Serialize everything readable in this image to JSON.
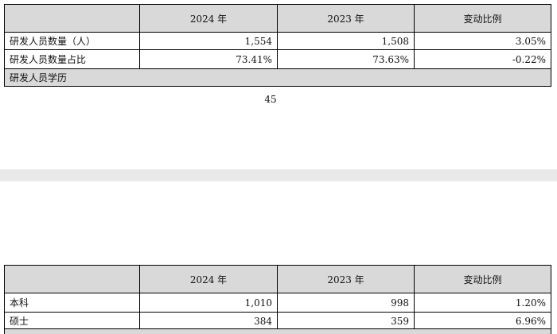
{
  "page1": {
    "table": {
      "header": [
        "2024 年",
        "2023 年",
        "变动比例"
      ],
      "rows": [
        [
          "研发人员数量（人）",
          "1,554",
          "1,508",
          "3.05%"
        ],
        [
          "研发人员数量占比",
          "73.41%",
          "73.63%",
          "-0.22%"
        ]
      ],
      "section": "研发人员学历"
    },
    "page_number": "45"
  },
  "page2": {
    "table": {
      "header": [
        "2024 年",
        "2023 年",
        "变动比例"
      ],
      "rows": [
        [
          "本科",
          "1,010",
          "998",
          "1.20%"
        ],
        [
          "硕士",
          "384",
          "359",
          "6.96%"
        ]
      ]
    }
  }
}
